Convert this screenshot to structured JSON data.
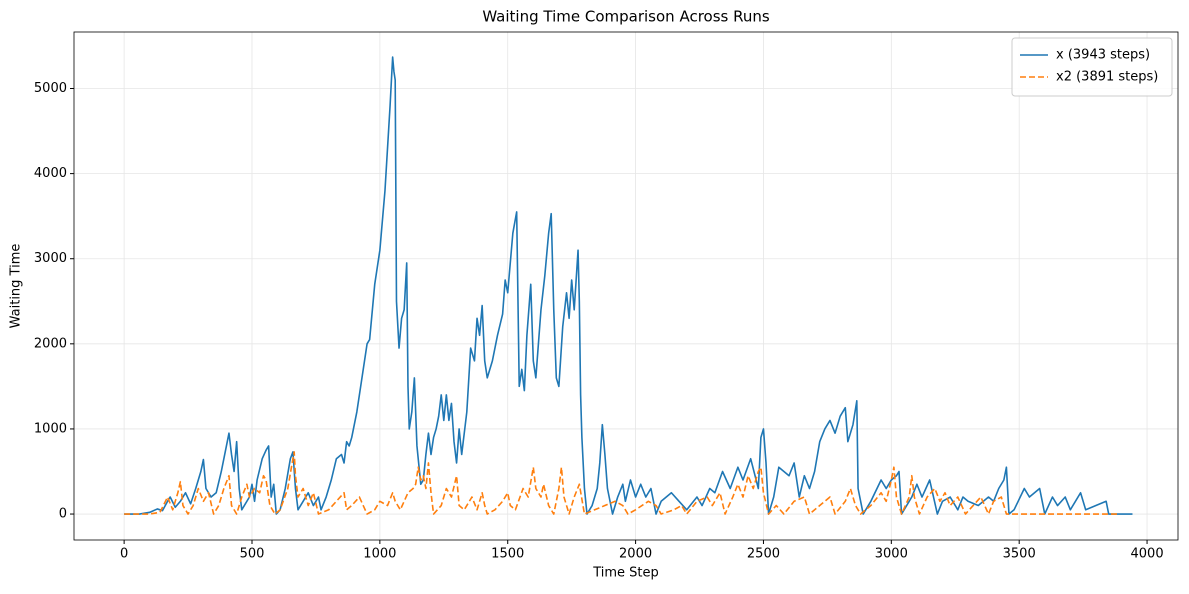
{
  "chart_data": {
    "type": "line",
    "title": "Waiting Time Comparison Across Runs",
    "x_label": "Time Step",
    "y_label": "Waiting Time",
    "xlim": [
      -196,
      4121
    ],
    "ylim": [
      -305,
      5664
    ],
    "xticks": [
      0,
      500,
      1000,
      1500,
      2000,
      2500,
      3000,
      3500,
      4000
    ],
    "yticks": [
      0,
      1000,
      2000,
      3000,
      4000,
      5000
    ],
    "grid": true,
    "legend": "upper right",
    "series": [
      {
        "name": "x (3943 steps)",
        "color": "#1f77b4",
        "linestyle": "solid",
        "x": [
          0,
          60,
          100,
          130,
          150,
          170,
          180,
          200,
          220,
          240,
          260,
          280,
          300,
          310,
          320,
          340,
          360,
          380,
          400,
          410,
          420,
          430,
          440,
          450,
          460,
          470,
          490,
          500,
          510,
          520,
          540,
          555,
          565,
          575,
          585,
          595,
          610,
          630,
          650,
          660,
          670,
          680,
          700,
          720,
          740,
          760,
          770,
          790,
          810,
          830,
          850,
          860,
          870,
          880,
          890,
          910,
          930,
          950,
          960,
          980,
          1000,
          1020,
          1040,
          1050,
          1055,
          1060,
          1065,
          1075,
          1085,
          1095,
          1105,
          1110,
          1115,
          1125,
          1135,
          1145,
          1160,
          1170,
          1180,
          1190,
          1200,
          1210,
          1220,
          1230,
          1240,
          1250,
          1260,
          1270,
          1280,
          1290,
          1300,
          1310,
          1320,
          1340,
          1355,
          1370,
          1380,
          1390,
          1400,
          1410,
          1420,
          1440,
          1460,
          1480,
          1490,
          1500,
          1520,
          1535,
          1545,
          1555,
          1565,
          1575,
          1590,
          1600,
          1610,
          1630,
          1645,
          1660,
          1670,
          1680,
          1690,
          1700,
          1715,
          1730,
          1740,
          1750,
          1760,
          1775,
          1780,
          1785,
          1790,
          1800,
          1810,
          1830,
          1850,
          1860,
          1870,
          1880,
          1890,
          1900,
          1910,
          1930,
          1950,
          1960,
          1980,
          2000,
          2020,
          2040,
          2060,
          2080,
          2100,
          2140,
          2170,
          2200,
          2240,
          2260,
          2290,
          2310,
          2340,
          2370,
          2400,
          2420,
          2450,
          2480,
          2490,
          2500,
          2510,
          2520,
          2540,
          2560,
          2580,
          2600,
          2620,
          2640,
          2660,
          2680,
          2700,
          2720,
          2740,
          2760,
          2780,
          2800,
          2820,
          2830,
          2850,
          2865,
          2870,
          2890,
          2920,
          2960,
          2980,
          3000,
          3020,
          3030,
          3040,
          3080,
          3100,
          3120,
          3150,
          3180,
          3200,
          3230,
          3260,
          3280,
          3300,
          3340,
          3380,
          3400,
          3420,
          3440,
          3450,
          3460,
          3480,
          3520,
          3540,
          3580,
          3600,
          3630,
          3650,
          3680,
          3700,
          3720,
          3740,
          3760,
          3800,
          3840,
          3850,
          3943
        ],
        "values": [
          0,
          0,
          20,
          60,
          40,
          150,
          200,
          80,
          150,
          250,
          120,
          300,
          500,
          640,
          300,
          200,
          250,
          500,
          800,
          950,
          700,
          500,
          850,
          300,
          50,
          100,
          200,
          350,
          150,
          400,
          650,
          750,
          800,
          200,
          350,
          0,
          50,
          300,
          650,
          730,
          300,
          50,
          150,
          250,
          100,
          200,
          50,
          200,
          400,
          650,
          700,
          600,
          850,
          800,
          900,
          1200,
          1600,
          2000,
          2050,
          2700,
          3100,
          3800,
          4800,
          5370,
          5200,
          5100,
          2500,
          1950,
          2300,
          2400,
          2950,
          1500,
          1000,
          1200,
          1600,
          800,
          350,
          400,
          700,
          950,
          700,
          900,
          1000,
          1150,
          1400,
          1100,
          1400,
          1100,
          1300,
          850,
          600,
          1000,
          700,
          1200,
          1950,
          1800,
          2300,
          2100,
          2450,
          1800,
          1600,
          1800,
          2100,
          2350,
          2750,
          2600,
          3300,
          3550,
          1500,
          1700,
          1450,
          2100,
          2700,
          1800,
          1600,
          2400,
          2800,
          3300,
          3530,
          2400,
          1600,
          1500,
          2200,
          2600,
          2300,
          2750,
          2400,
          3100,
          2500,
          1400,
          900,
          300,
          0,
          100,
          300,
          600,
          1050,
          700,
          300,
          150,
          0,
          200,
          350,
          150,
          400,
          200,
          350,
          200,
          300,
          0,
          150,
          250,
          150,
          50,
          200,
          100,
          300,
          250,
          500,
          300,
          550,
          400,
          650,
          300,
          900,
          1000,
          600,
          0,
          200,
          550,
          500,
          450,
          600,
          200,
          450,
          300,
          500,
          850,
          1000,
          1100,
          950,
          1150,
          1250,
          850,
          1050,
          1330,
          300,
          0,
          150,
          400,
          300,
          400,
          450,
          500,
          0,
          200,
          350,
          200,
          400,
          0,
          150,
          200,
          50,
          200,
          150,
          100,
          200,
          150,
          300,
          400,
          550,
          0,
          50,
          300,
          200,
          300,
          0,
          200,
          100,
          200,
          50,
          150,
          250,
          50,
          100,
          150,
          0,
          0
        ]
      },
      {
        "name": "x2 (3891 steps)",
        "color": "#ff7f0e",
        "linestyle": "dashed",
        "x": [
          0,
          100,
          140,
          170,
          190,
          210,
          220,
          230,
          250,
          270,
          290,
          310,
          330,
          350,
          370,
          390,
          410,
          420,
          440,
          460,
          480,
          490,
          510,
          530,
          545,
          555,
          570,
          590,
          610,
          640,
          660,
          665,
          670,
          680,
          700,
          720,
          740,
          760,
          800,
          830,
          860,
          870,
          890,
          920,
          935,
          950,
          980,
          1000,
          1030,
          1050,
          1060,
          1080,
          1110,
          1130,
          1140,
          1150,
          1160,
          1170,
          1180,
          1190,
          1200,
          1210,
          1240,
          1260,
          1280,
          1300,
          1310,
          1330,
          1360,
          1380,
          1400,
          1410,
          1420,
          1450,
          1480,
          1500,
          1510,
          1530,
          1560,
          1580,
          1600,
          1610,
          1630,
          1640,
          1660,
          1680,
          1700,
          1710,
          1720,
          1740,
          1760,
          1780,
          1800,
          1840,
          1880,
          1920,
          1950,
          1970,
          2000,
          2050,
          2080,
          2100,
          2150,
          2180,
          2200,
          2240,
          2280,
          2300,
          2330,
          2350,
          2380,
          2400,
          2420,
          2440,
          2460,
          2480,
          2490,
          2500,
          2520,
          2550,
          2580,
          2620,
          2660,
          2680,
          2720,
          2760,
          2780,
          2820,
          2840,
          2860,
          2880,
          2920,
          2960,
          2980,
          3000,
          3010,
          3020,
          3040,
          3070,
          3080,
          3090,
          3110,
          3140,
          3170,
          3190,
          3210,
          3230,
          3260,
          3290,
          3320,
          3350,
          3380,
          3400,
          3430,
          3440,
          3450,
          3891
        ],
        "values": [
          0,
          0,
          20,
          200,
          50,
          250,
          380,
          100,
          0,
          100,
          300,
          150,
          250,
          0,
          100,
          300,
          450,
          100,
          0,
          200,
          350,
          200,
          300,
          250,
          450,
          400,
          100,
          0,
          50,
          300,
          650,
          730,
          450,
          200,
          300,
          100,
          250,
          0,
          50,
          150,
          250,
          50,
          100,
          200,
          100,
          0,
          50,
          150,
          100,
          250,
          150,
          50,
          250,
          300,
          350,
          550,
          400,
          450,
          300,
          600,
          250,
          0,
          100,
          300,
          200,
          450,
          100,
          50,
          200,
          50,
          250,
          100,
          0,
          50,
          150,
          250,
          100,
          50,
          300,
          200,
          550,
          300,
          200,
          350,
          100,
          0,
          300,
          550,
          200,
          0,
          200,
          350,
          0,
          50,
          100,
          150,
          100,
          0,
          50,
          150,
          100,
          0,
          50,
          100,
          0,
          150,
          200,
          100,
          250,
          0,
          200,
          350,
          200,
          450,
          300,
          500,
          550,
          250,
          0,
          100,
          0,
          150,
          200,
          0,
          100,
          200,
          0,
          150,
          300,
          100,
          0,
          100,
          250,
          150,
          400,
          550,
          200,
          0,
          200,
          450,
          200,
          0,
          200,
          300,
          150,
          250,
          100,
          200,
          0,
          100,
          200,
          0,
          150,
          200,
          100,
          0,
          0
        ]
      }
    ]
  }
}
